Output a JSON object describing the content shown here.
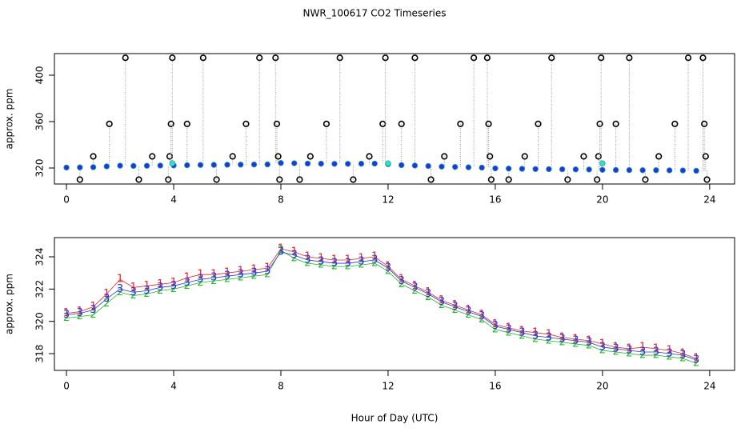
{
  "chart_data": [
    {
      "type": "scatter",
      "title": "NWR_100617  CO2 Timeseries",
      "ylabel": "approx. ppm",
      "xlim": [
        -0.45,
        24.93
      ],
      "ylim": [
        306.2,
        418.6
      ],
      "xticks": [
        0,
        4,
        8,
        12,
        16,
        20,
        24
      ],
      "yticks": [
        320,
        360,
        400
      ],
      "series": [
        {
          "color": "#000000",
          "marker": "ring",
          "connect": "dotted",
          "x": [
            0.5,
            1.0,
            1.6,
            2.2,
            2.7,
            3.2,
            3.8,
            3.85,
            3.9,
            3.95,
            4.5,
            5.1,
            5.6,
            6.2,
            6.7,
            7.2,
            7.8,
            7.85,
            7.9,
            7.95,
            8.7,
            9.1,
            9.7,
            10.2,
            10.7,
            11.3,
            11.8,
            11.9,
            12.5,
            13.0,
            13.6,
            14.1,
            14.7,
            15.2,
            15.7,
            15.75,
            15.8,
            15.85,
            16.5,
            17.1,
            17.6,
            18.1,
            18.7,
            19.3,
            19.8,
            19.85,
            19.9,
            19.95,
            20.5,
            21.0,
            21.6,
            22.1,
            22.7,
            23.2,
            23.75,
            23.8,
            23.85,
            23.9
          ],
          "values": [
            310,
            330,
            358,
            415,
            310,
            330,
            310,
            330,
            358,
            415,
            358,
            415,
            310,
            330,
            358,
            415,
            415,
            358,
            330,
            310,
            310,
            330,
            358,
            415,
            310,
            330,
            358,
            415,
            358,
            415,
            310,
            330,
            358,
            415,
            415,
            358,
            330,
            310,
            310,
            330,
            358,
            415,
            310,
            330,
            310,
            330,
            358,
            415,
            358,
            415,
            310,
            330,
            358,
            415,
            415,
            358,
            330,
            310
          ]
        },
        {
          "color": "#2233ee",
          "marker": "dot",
          "x": [
            0,
            0.5,
            1,
            1.5,
            2,
            2.5,
            3,
            3.5,
            4,
            4.5,
            5,
            5.5,
            6,
            6.5,
            7,
            7.5,
            8,
            8.5,
            9,
            9.5,
            10,
            10.5,
            11,
            11.5,
            12,
            12.5,
            13,
            13.5,
            14,
            14.5,
            15,
            15.5,
            16,
            16.5,
            17,
            17.5,
            18,
            18.5,
            19,
            19.5,
            20,
            20.5,
            21,
            21.5,
            22,
            22.5,
            23,
            23.5
          ],
          "values": [
            320.4,
            320.5,
            320.7,
            321.4,
            322.0,
            321.8,
            321.9,
            322.1,
            322.2,
            322.4,
            322.6,
            322.7,
            322.8,
            322.9,
            323.0,
            323.1,
            324.3,
            324.1,
            323.8,
            323.7,
            323.6,
            323.6,
            323.7,
            323.8,
            323.3,
            322.5,
            322.1,
            321.7,
            321.2,
            320.9,
            320.6,
            320.3,
            319.7,
            319.5,
            319.3,
            319.1,
            319.0,
            318.9,
            318.8,
            318.7,
            318.4,
            318.3,
            318.2,
            318.1,
            318.1,
            318.0,
            317.9,
            317.6
          ]
        },
        {
          "color": "#33dddd",
          "marker": "dot",
          "x": [
            3.95,
            12.0,
            20.0
          ],
          "values": [
            324,
            324,
            324
          ]
        }
      ]
    },
    {
      "type": "line",
      "ylabel": "approx. ppm",
      "xlabel": "Hour of Day (UTC)",
      "xlim": [
        -0.45,
        24.93
      ],
      "ylim": [
        316.96,
        325.19
      ],
      "xticks": [
        0,
        4,
        8,
        12,
        16,
        20,
        24
      ],
      "yticks": [
        318,
        320,
        322,
        324
      ],
      "x": [
        0,
        0.5,
        1,
        1.5,
        2,
        2.5,
        3,
        3.5,
        4,
        4.5,
        5,
        5.5,
        6,
        6.5,
        7,
        7.5,
        8,
        8.5,
        9,
        9.5,
        10,
        10.5,
        11,
        11.5,
        12,
        12.5,
        13,
        13.5,
        14,
        14.5,
        15,
        15.5,
        16,
        16.5,
        17,
        17.5,
        18,
        18.5,
        19,
        19.5,
        20,
        20.5,
        21,
        21.5,
        22,
        22.5,
        23,
        23.5
      ],
      "series": [
        {
          "symbol": "1",
          "color": "#ee2222",
          "values": [
            320.5,
            320.6,
            320.9,
            321.7,
            322.6,
            322.1,
            322.2,
            322.3,
            322.4,
            322.7,
            322.9,
            322.9,
            323.0,
            323.1,
            323.2,
            323.3,
            324.5,
            324.3,
            324.0,
            323.9,
            323.8,
            323.8,
            323.9,
            324.0,
            323.4,
            322.6,
            322.2,
            321.8,
            321.3,
            321.0,
            320.7,
            320.4,
            319.8,
            319.6,
            319.4,
            319.3,
            319.2,
            319.0,
            318.9,
            318.8,
            318.6,
            318.4,
            318.3,
            318.4,
            318.3,
            318.2,
            318.0,
            317.7
          ]
        },
        {
          "symbol": "2",
          "color": "#22bb22",
          "values": [
            320.2,
            320.3,
            320.4,
            321.1,
            321.8,
            321.6,
            321.7,
            321.9,
            322.0,
            322.2,
            322.4,
            322.5,
            322.6,
            322.7,
            322.8,
            322.9,
            324.4,
            323.9,
            323.6,
            323.5,
            323.4,
            323.4,
            323.5,
            323.6,
            323.1,
            322.3,
            321.9,
            321.5,
            321.0,
            320.7,
            320.4,
            320.1,
            319.5,
            319.3,
            319.1,
            318.9,
            318.8,
            318.7,
            318.6,
            318.5,
            318.2,
            318.1,
            318.0,
            317.9,
            317.9,
            317.8,
            317.7,
            317.4
          ]
        },
        {
          "symbol": "3",
          "color": "#2233ee",
          "values": [
            320.4,
            320.5,
            320.7,
            321.4,
            322.0,
            321.8,
            321.9,
            322.1,
            322.2,
            322.4,
            322.6,
            322.7,
            322.8,
            322.9,
            323.0,
            323.1,
            324.3,
            324.1,
            323.8,
            323.7,
            323.6,
            323.6,
            323.7,
            323.8,
            323.3,
            322.5,
            322.1,
            321.7,
            321.2,
            320.9,
            320.6,
            320.3,
            319.7,
            319.5,
            319.3,
            319.1,
            319.0,
            318.9,
            318.8,
            318.7,
            318.4,
            318.3,
            318.2,
            318.1,
            318.1,
            318.0,
            317.9,
            317.6
          ]
        }
      ]
    }
  ]
}
